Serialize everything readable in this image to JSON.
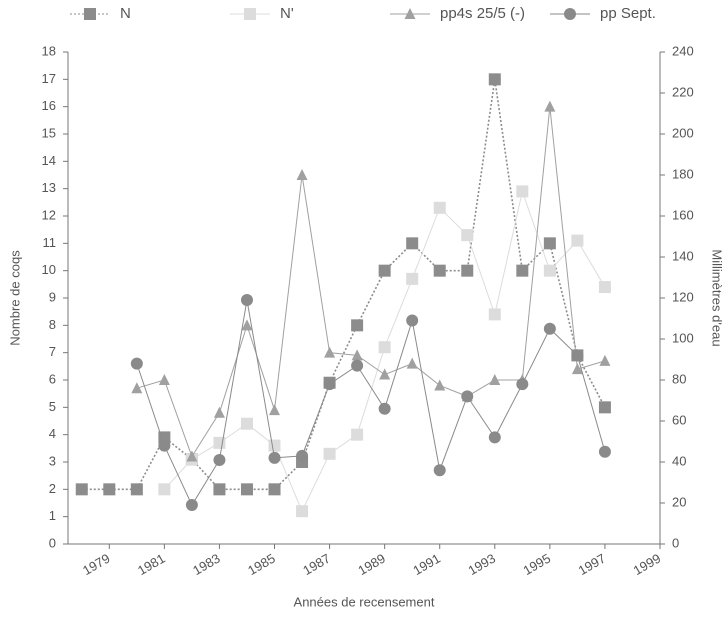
{
  "chart_data": {
    "type": "line",
    "x": [
      1978,
      1979,
      1980,
      1981,
      1982,
      1983,
      1984,
      1985,
      1986,
      1987,
      1988,
      1989,
      1990,
      1991,
      1992,
      1993,
      1994,
      1995,
      1996,
      1997
    ],
    "series": [
      {
        "name": "N",
        "color": "#8c8c8c",
        "marker": "square",
        "dash": true,
        "values": [
          2,
          2,
          2,
          3.9,
          3.1,
          2,
          2,
          2,
          3,
          5.9,
          8,
          10,
          11,
          10,
          10,
          17,
          10,
          11,
          6.9,
          5
        ]
      },
      {
        "name": "N'",
        "color": "#dcdcdc",
        "marker": "square",
        "dash": false,
        "values": [
          null,
          null,
          null,
          2.0,
          3.1,
          3.7,
          4.4,
          3.6,
          1.2,
          3.3,
          4.0,
          7.2,
          9.7,
          12.3,
          11.3,
          8.4,
          12.9,
          10.0,
          11.1,
          9.4
        ]
      },
      {
        "name": "pp4s 25/5 (-)",
        "color": "#a0a0a0",
        "marker": "triangle",
        "dash": false,
        "values": [
          null,
          null,
          5.7,
          6.0,
          3.2,
          4.8,
          8.0,
          4.9,
          13.5,
          7.0,
          6.9,
          6.2,
          6.6,
          5.8,
          5.4,
          6.0,
          6.0,
          16.0,
          6.4,
          6.7
        ]
      },
      {
        "name": "pp Sept.",
        "color": "#8a8a8a",
        "marker": "circle",
        "dash": false,
        "axis": "y2",
        "values": [
          null,
          null,
          88,
          48,
          19,
          41,
          119,
          42,
          43,
          78,
          87,
          66,
          109,
          36,
          72,
          52,
          78,
          105,
          92,
          45
        ]
      }
    ],
    "xlim": [
      1977.5,
      1999
    ],
    "xticks": [
      1979,
      1981,
      1983,
      1985,
      1987,
      1989,
      1991,
      1993,
      1995,
      1997,
      1999
    ],
    "ylim": [
      0,
      18
    ],
    "yticks": [
      0,
      1,
      2,
      3,
      4,
      5,
      6,
      7,
      8,
      9,
      10,
      11,
      12,
      13,
      14,
      15,
      16,
      17,
      18
    ],
    "y2lim": [
      0,
      240
    ],
    "y2ticks": [
      0,
      20,
      40,
      60,
      80,
      100,
      120,
      140,
      160,
      180,
      200,
      220,
      240
    ],
    "xlabel": "Années de recensement",
    "ylabel": "Nombre de coqs",
    "y2label": "Millimètres d'eau"
  }
}
